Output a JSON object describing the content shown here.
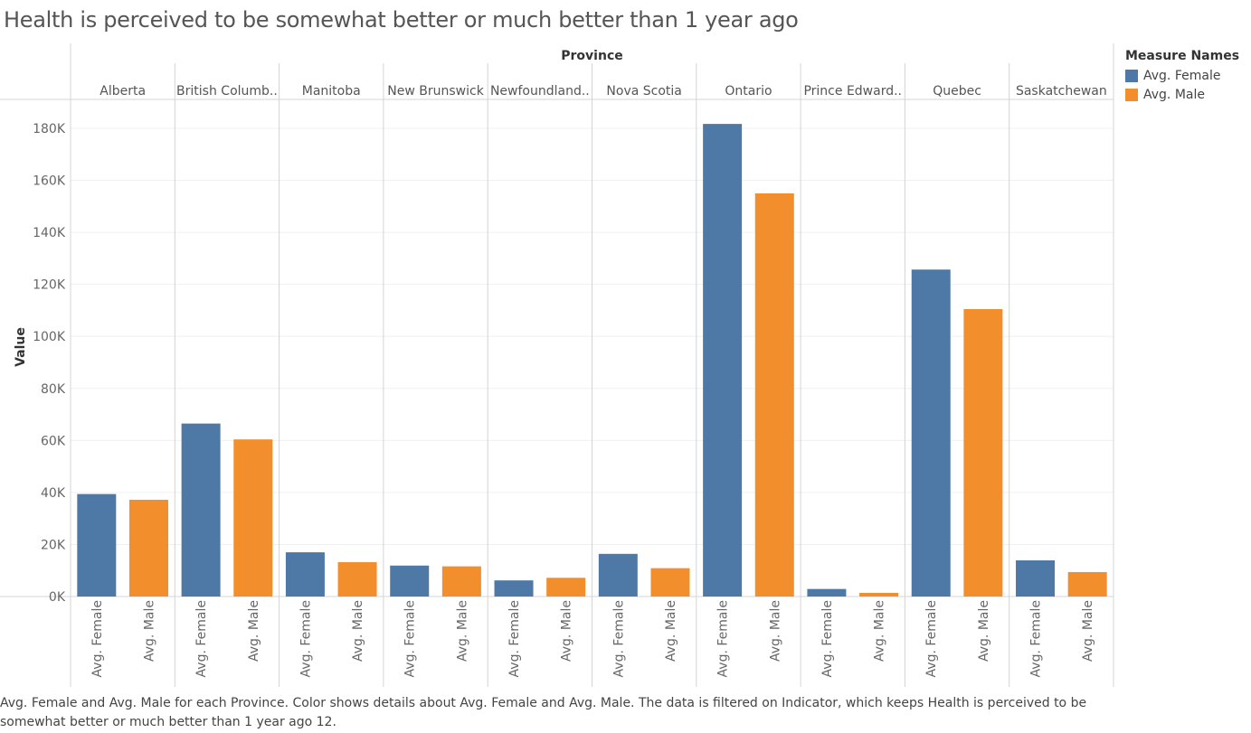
{
  "title": "Health is perceived to be somewhat better or much better than 1 year ago",
  "caption": "Avg. Female and Avg. Male for each Province.  Color shows details about Avg. Female and Avg. Male. The data is filtered on Indicator, which keeps Health is perceived to be somewhat better or much better than 1 year ago 12.",
  "legend": {
    "title": "Measure Names",
    "items": [
      {
        "label": "Avg. Female",
        "color": "#4e79a7"
      },
      {
        "label": "Avg. Male",
        "color": "#f28e2b"
      }
    ]
  },
  "chart_data": {
    "type": "bar",
    "title": "Health is perceived to be somewhat better or much better than 1 year ago",
    "column_header": "Province",
    "ylabel": "Value",
    "ylim": [
      0,
      190000
    ],
    "yticks": [
      0,
      20000,
      40000,
      60000,
      80000,
      100000,
      120000,
      140000,
      160000,
      180000
    ],
    "ytick_labels": [
      "0K",
      "20K",
      "40K",
      "60K",
      "80K",
      "100K",
      "120K",
      "140K",
      "160K",
      "180K"
    ],
    "provinces": [
      "Alberta",
      "British Columb..",
      "Manitoba",
      "New Brunswick",
      "Newfoundland..",
      "Nova Scotia",
      "Ontario",
      "Prince Edward..",
      "Quebec",
      "Saskatchewan"
    ],
    "measures": [
      "Avg. Female",
      "Avg. Male"
    ],
    "series": [
      {
        "name": "Avg. Female",
        "color": "#4e79a7",
        "values": [
          39400,
          66500,
          17000,
          11900,
          6200,
          16400,
          181700,
          2900,
          125700,
          13900
        ]
      },
      {
        "name": "Avg. Male",
        "color": "#f28e2b",
        "values": [
          37200,
          60400,
          13200,
          11600,
          7200,
          10900,
          155000,
          1400,
          110500,
          9400
        ]
      }
    ],
    "grid": true,
    "legend_position": "top-right"
  }
}
